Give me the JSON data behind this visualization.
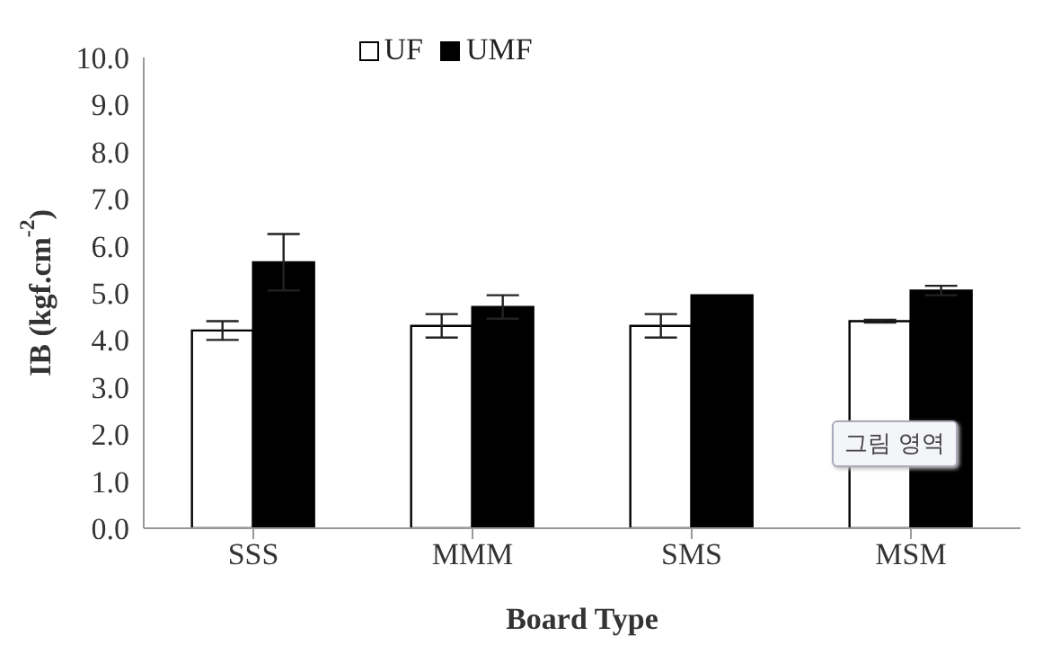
{
  "chart_data": {
    "type": "bar",
    "xlabel": "Board Type",
    "ylabel": "IB (kgf.cm$^{-2}$)",
    "categories": [
      "SSS",
      "MMM",
      "SMS",
      "MSM"
    ],
    "series": [
      {
        "name": "UF",
        "color": "#ffffff",
        "values": [
          4.2,
          4.3,
          4.3,
          4.4
        ],
        "errors": [
          0.2,
          0.25,
          0.25,
          0.03
        ]
      },
      {
        "name": "UMF",
        "color": "#000000",
        "values": [
          5.65,
          4.7,
          4.95,
          5.05
        ],
        "errors": [
          0.6,
          0.25,
          null,
          0.1
        ]
      }
    ],
    "ylim": [
      0,
      10
    ],
    "yticks": [
      {
        "value": 0,
        "label": "0.0"
      },
      {
        "value": 1,
        "label": "1.0"
      },
      {
        "value": 2,
        "label": "2.0"
      },
      {
        "value": 3,
        "label": "3.0"
      },
      {
        "value": 4,
        "label": "4.0"
      },
      {
        "value": 5,
        "label": "5.0"
      },
      {
        "value": 6,
        "label": "6.0"
      },
      {
        "value": 7,
        "label": "7.0"
      },
      {
        "value": 8,
        "label": "8.0"
      },
      {
        "value": 9,
        "label": "9.0"
      },
      {
        "value": 10,
        "label": "10.0"
      }
    ],
    "grid": false,
    "legend": "top",
    "annotations": [
      "그림 영역"
    ]
  }
}
